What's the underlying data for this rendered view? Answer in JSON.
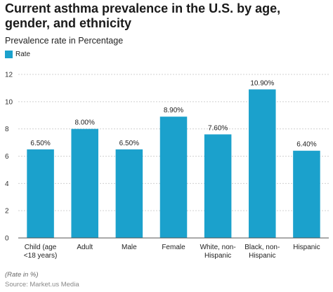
{
  "chart_data": {
    "type": "bar",
    "title": "Current asthma prevalence in the U.S. by age, gender, and ethnicity",
    "subtitle": "Prevalence rate in Percentage",
    "legend": {
      "entries": [
        "Rate"
      ],
      "placement": "top-left"
    },
    "categories": [
      [
        "Child (age",
        "<18 years)"
      ],
      [
        "Adult"
      ],
      [
        "Male"
      ],
      [
        "Female"
      ],
      [
        "White, non-",
        "Hispanic"
      ],
      [
        "Black, non-",
        "Hispanic"
      ],
      [
        "Hispanic"
      ]
    ],
    "series": [
      {
        "name": "Rate",
        "values": [
          6.5,
          8.0,
          6.5,
          8.9,
          7.6,
          10.9,
          6.4
        ],
        "labels": [
          "6.50%",
          "8.00%",
          "6.50%",
          "8.90%",
          "7.60%",
          "10.90%",
          "6.40%"
        ]
      }
    ],
    "yticks": [
      "0",
      "2",
      "4",
      "6",
      "8",
      "10",
      "12"
    ],
    "ylim": [
      0,
      12
    ],
    "grid": true,
    "bar_color": "#1ba1cc",
    "note": "(Rate in %)",
    "source": "Source: Market.us Media"
  }
}
